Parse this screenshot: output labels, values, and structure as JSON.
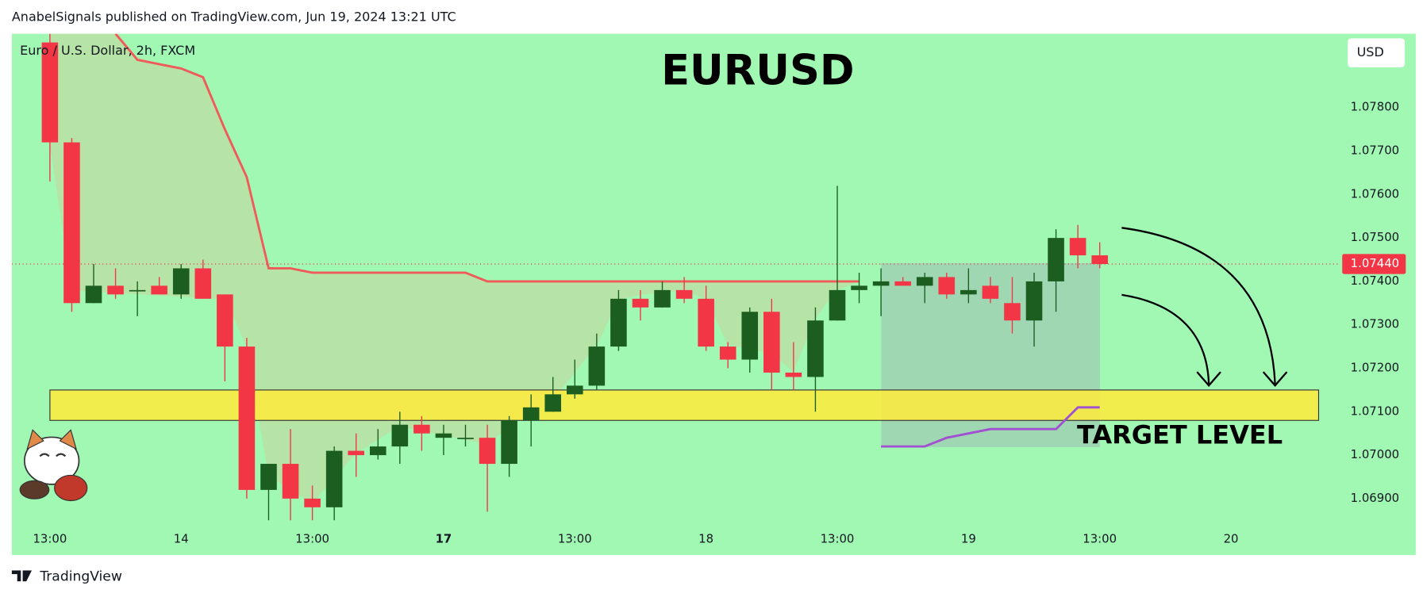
{
  "header": "AnabelSignals published on TradingView.com, Jun 19, 2024 13:21 UTC",
  "footer": "TradingView",
  "chart_data": {
    "type": "candlestick",
    "title": "EURUSD",
    "symbol": "Euro / U.S. Dollar, 2h, FXCM",
    "currency": "USD",
    "annotation": "TARGET LEVEL",
    "categories": [
      "13:00",
      null,
      null,
      null,
      null,
      null,
      "14",
      null,
      null,
      null,
      null,
      null,
      "13:00",
      null,
      null,
      null,
      null,
      null,
      "17",
      null,
      null,
      null,
      null,
      null,
      "13:00",
      null,
      null,
      null,
      null,
      null,
      "18",
      null,
      null,
      null,
      null,
      null,
      "13:00",
      null,
      null,
      null,
      null,
      null,
      "19",
      null,
      null,
      null,
      null,
      null,
      "13:00",
      null,
      null,
      null,
      null,
      null,
      "20"
    ],
    "open": [
      1.0795,
      1.0772,
      1.0735,
      1.0739,
      1.0738,
      1.0739,
      1.0737,
      1.0743,
      1.0737,
      1.0725,
      1.0692,
      1.0698,
      1.069,
      1.0688,
      1.0701,
      1.07,
      1.0702,
      1.0707,
      1.0704,
      1.0704,
      1.0704,
      1.0698,
      1.0708,
      1.071,
      1.0714,
      1.0716,
      1.0725,
      1.0736,
      1.0734,
      1.0738,
      1.0736,
      1.0725,
      1.0722,
      1.0733,
      1.0719,
      1.0718,
      1.0731,
      1.0738,
      1.0739,
      1.074,
      1.0739,
      1.0741,
      1.0737,
      1.0739,
      1.0735,
      1.0731,
      1.074,
      1.075,
      1.0746,
      null,
      null,
      null,
      null,
      null,
      null
    ],
    "high": [
      1.0797,
      1.0773,
      1.0744,
      1.0743,
      1.074,
      1.0741,
      1.0744,
      1.0745,
      1.0737,
      1.0727,
      1.0698,
      1.0706,
      1.0693,
      1.0702,
      1.0705,
      1.0706,
      1.071,
      1.0709,
      1.0707,
      1.0707,
      1.0707,
      1.0709,
      1.0714,
      1.0718,
      1.0722,
      1.0728,
      1.0738,
      1.0738,
      1.074,
      1.0741,
      1.0739,
      1.0726,
      1.0734,
      1.0736,
      1.0726,
      1.0734,
      1.0762,
      1.0742,
      1.0743,
      1.0741,
      1.0742,
      1.0742,
      1.0743,
      1.0741,
      1.0741,
      1.0742,
      1.0752,
      1.0753,
      1.0749,
      null,
      null,
      null,
      null,
      null,
      null
    ],
    "low": [
      1.0763,
      1.0733,
      1.0735,
      1.0736,
      1.0732,
      1.0737,
      1.0736,
      1.0736,
      1.0717,
      1.069,
      1.0685,
      1.0685,
      1.0685,
      1.0685,
      1.0695,
      1.0699,
      1.0698,
      1.0701,
      1.07,
      1.0702,
      1.0687,
      1.0695,
      1.0702,
      1.071,
      1.0713,
      1.0715,
      1.0724,
      1.0731,
      1.0734,
      1.0735,
      1.0724,
      1.072,
      1.0719,
      1.0715,
      1.0715,
      1.071,
      1.0731,
      1.0735,
      1.0732,
      1.0739,
      1.0735,
      1.0736,
      1.0735,
      1.0735,
      1.0728,
      1.0725,
      1.0733,
      1.0743,
      1.0743,
      null,
      null,
      null,
      null,
      null,
      null
    ],
    "close": [
      1.0772,
      1.0735,
      1.0739,
      1.0737,
      1.0738,
      1.0737,
      1.0743,
      1.0736,
      1.0725,
      1.0692,
      1.0698,
      1.069,
      1.0688,
      1.0701,
      1.07,
      1.0702,
      1.0707,
      1.0705,
      1.0705,
      1.0704,
      1.0698,
      1.0708,
      1.0711,
      1.0714,
      1.0716,
      1.0725,
      1.0736,
      1.0734,
      1.0738,
      1.0736,
      1.0725,
      1.0722,
      1.0733,
      1.0719,
      1.0718,
      1.0731,
      1.0738,
      1.0739,
      1.074,
      1.0739,
      1.0741,
      1.0737,
      1.0738,
      1.0736,
      1.0731,
      1.074,
      1.075,
      1.0746,
      1.0744,
      null,
      null,
      null,
      null,
      null,
      null
    ],
    "up_color": "#1b5e20",
    "down_color": "#f23645",
    "lines": [
      {
        "color": "#f05a5a",
        "values": [
          null,
          null,
          null,
          1.0797,
          1.0791,
          1.079,
          1.0789,
          1.0787,
          1.0775,
          1.0764,
          1.0743,
          1.0743,
          1.0742,
          1.0742,
          1.0742,
          1.0742,
          1.0742,
          1.0742,
          1.0742,
          1.0742,
          1.074,
          1.074,
          1.074,
          1.074,
          1.074,
          1.074,
          1.074,
          1.074,
          1.074,
          1.074,
          1.074,
          1.074,
          1.074,
          1.074,
          1.074,
          1.074,
          1.074,
          1.074,
          null,
          null,
          null,
          null,
          null,
          null,
          null,
          null,
          null,
          null,
          null,
          null,
          null,
          null,
          null,
          null,
          null
        ]
      },
      {
        "color": "#a050d0",
        "values": [
          null,
          null,
          null,
          null,
          null,
          null,
          null,
          null,
          null,
          null,
          null,
          null,
          null,
          null,
          null,
          null,
          null,
          null,
          null,
          null,
          null,
          null,
          null,
          null,
          null,
          null,
          null,
          null,
          null,
          null,
          null,
          null,
          null,
          null,
          null,
          null,
          null,
          null,
          1.0702,
          1.0702,
          1.0702,
          1.0704,
          1.0705,
          1.0706,
          1.0706,
          1.0706,
          1.0706,
          1.0711,
          1.0711,
          null,
          null,
          null,
          null,
          null,
          null
        ]
      }
    ],
    "target_zone": {
      "low": 1.0708,
      "high": 1.0715,
      "color": "#ffeb3b"
    },
    "last_price": {
      "value": 1.0744,
      "label": "1.07440"
    },
    "ylim": [
      1.0677,
      1.0797
    ],
    "yticks": [
      {
        "value": 1.069,
        "label": "1.06900"
      },
      {
        "value": 1.07,
        "label": "1.07000"
      },
      {
        "value": 1.071,
        "label": "1.07100"
      },
      {
        "value": 1.072,
        "label": "1.07200"
      },
      {
        "value": 1.073,
        "label": "1.07300"
      },
      {
        "value": 1.074,
        "label": "1.07400"
      },
      {
        "value": 1.075,
        "label": "1.07500"
      },
      {
        "value": 1.076,
        "label": "1.07600"
      },
      {
        "value": 1.077,
        "label": "1.07700"
      },
      {
        "value": 1.078,
        "label": "1.07800"
      }
    ]
  }
}
